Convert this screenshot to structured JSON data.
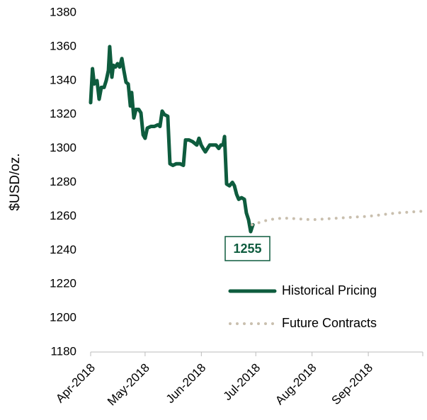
{
  "chart_data": {
    "type": "line",
    "y_label": "$USD/oz.",
    "annotations": [
      {
        "text": "1255"
      }
    ],
    "xlim": [
      0,
      183
    ],
    "xticks": [
      {
        "value": 0,
        "label": "Apr-2018"
      },
      {
        "value": 30,
        "label": "May-2018"
      },
      {
        "value": 61,
        "label": "Jun-2018"
      },
      {
        "value": 91,
        "label": "Jul-2018"
      },
      {
        "value": 122,
        "label": "Aug-2018"
      },
      {
        "value": 153,
        "label": "Sep-2018"
      },
      {
        "value": 183,
        "label": null
      }
    ],
    "ylim": [
      1180,
      1380
    ],
    "yticks": [
      1180,
      1200,
      1220,
      1240,
      1260,
      1280,
      1300,
      1320,
      1340,
      1360,
      1380
    ],
    "grid": false,
    "legend": "lower right",
    "series": [
      {
        "name": "Historical Pricing",
        "color": "#0e5c3e",
        "style": "solid",
        "x": [
          0,
          1,
          2,
          3.5,
          4.7,
          5.9,
          7.4,
          8.6,
          9.8,
          10.5,
          11.7,
          12.5,
          13.7,
          14.8,
          16,
          17.2,
          18.3,
          19.5,
          20.7,
          21.9,
          22.6,
          23.8,
          25,
          26.5,
          27.7,
          28.9,
          30,
          31.2,
          33.2,
          35.1,
          37.1,
          38.2,
          39.4,
          40.6,
          42.5,
          43.7,
          45.3,
          47.2,
          49.2,
          51.1,
          52.3,
          54.2,
          56.2,
          58.5,
          59.7,
          60.9,
          62,
          63.2,
          64.4,
          65.6,
          67.2,
          69.1,
          70.6,
          71.8,
          73,
          73.8,
          74.9,
          76.5,
          78.1,
          79.2,
          80.4,
          81.6,
          83.1,
          84.7,
          85.8,
          87,
          88.2,
          89.4
        ],
        "values": [
          1327,
          1347,
          1338,
          1340,
          1329,
          1336,
          1336,
          1340,
          1346,
          1360,
          1342,
          1349,
          1348,
          1350,
          1348,
          1353,
          1346,
          1339,
          1338,
          1325,
          1333,
          1318,
          1323,
          1323,
          1321,
          1308,
          1306,
          1312,
          1313,
          1313,
          1314,
          1313,
          1322,
          1320,
          1319,
          1291,
          1290,
          1291,
          1291,
          1290,
          1305,
          1305,
          1304,
          1302,
          1306,
          1302,
          1300,
          1298,
          1300,
          1302,
          1302,
          1302,
          1300,
          1302,
          1302,
          1307,
          1279,
          1278,
          1280,
          1278,
          1273,
          1270,
          1271,
          1270,
          1262,
          1258,
          1251,
          1255
        ]
      },
      {
        "name": "Future Contracts",
        "color": "#c9bfae",
        "style": "dotted",
        "x": [
          89,
          98,
          106,
          114,
          122,
          137,
          153,
          169,
          183
        ],
        "values": [
          1255,
          1258,
          1259,
          1258.5,
          1258,
          1259,
          1260,
          1262,
          1263
        ]
      }
    ]
  }
}
